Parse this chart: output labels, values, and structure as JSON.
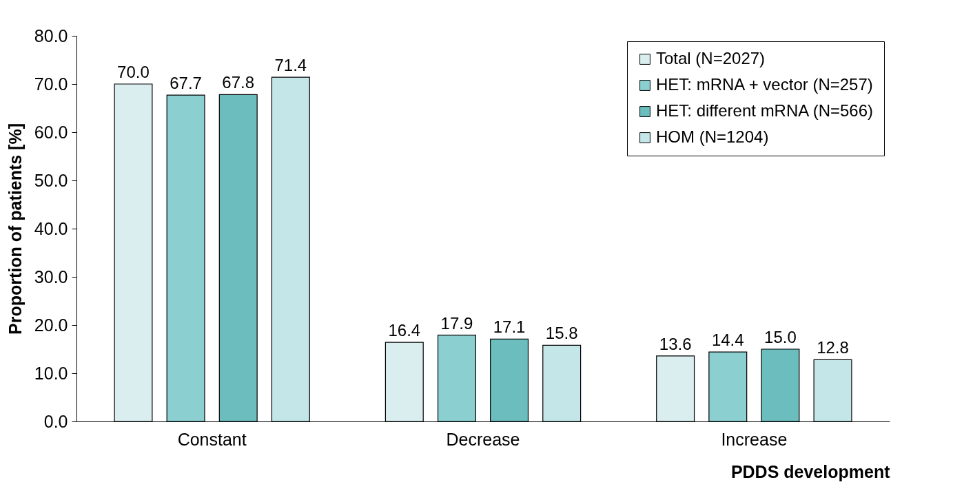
{
  "chart_data": {
    "type": "bar",
    "xlabel": "PDDS development",
    "ylabel": "Proportion of patients [%]",
    "categories": [
      "Constant",
      "Decrease",
      "Increase"
    ],
    "series": [
      {
        "name": "Total (N=2027)",
        "color": "#daeef0",
        "values": [
          70.0,
          16.4,
          13.6
        ],
        "value_labels": [
          "70.0",
          "16.4",
          "13.6"
        ]
      },
      {
        "name": "HET: mRNA + vector (N=257)",
        "color": "#8ccfd0",
        "values": [
          67.7,
          17.9,
          14.4
        ],
        "value_labels": [
          "67.7",
          "17.9",
          "14.4"
        ]
      },
      {
        "name": "HET: different mRNA (N=566)",
        "color": "#6bbdbe",
        "values": [
          67.8,
          17.1,
          15.0
        ],
        "value_labels": [
          "67.8",
          "17.1",
          "15.0"
        ]
      },
      {
        "name": "HOM (N=1204)",
        "color": "#c4e6e8",
        "values": [
          71.4,
          15.8,
          12.8
        ],
        "value_labels": [
          "71.4",
          "15.8",
          "12.8"
        ]
      }
    ],
    "ylim": [
      0,
      80
    ],
    "yticks": [
      {
        "value": 0,
        "label": "0.0"
      },
      {
        "value": 10,
        "label": "10.0"
      },
      {
        "value": 20,
        "label": "20.0"
      },
      {
        "value": 30,
        "label": "30.0"
      },
      {
        "value": 40,
        "label": "40.0"
      },
      {
        "value": 50,
        "label": "50.0"
      },
      {
        "value": 60,
        "label": "60.0"
      },
      {
        "value": 70,
        "label": "70.0"
      },
      {
        "value": 80,
        "label": "80.0"
      }
    ],
    "grid": false,
    "legend": "top right"
  }
}
